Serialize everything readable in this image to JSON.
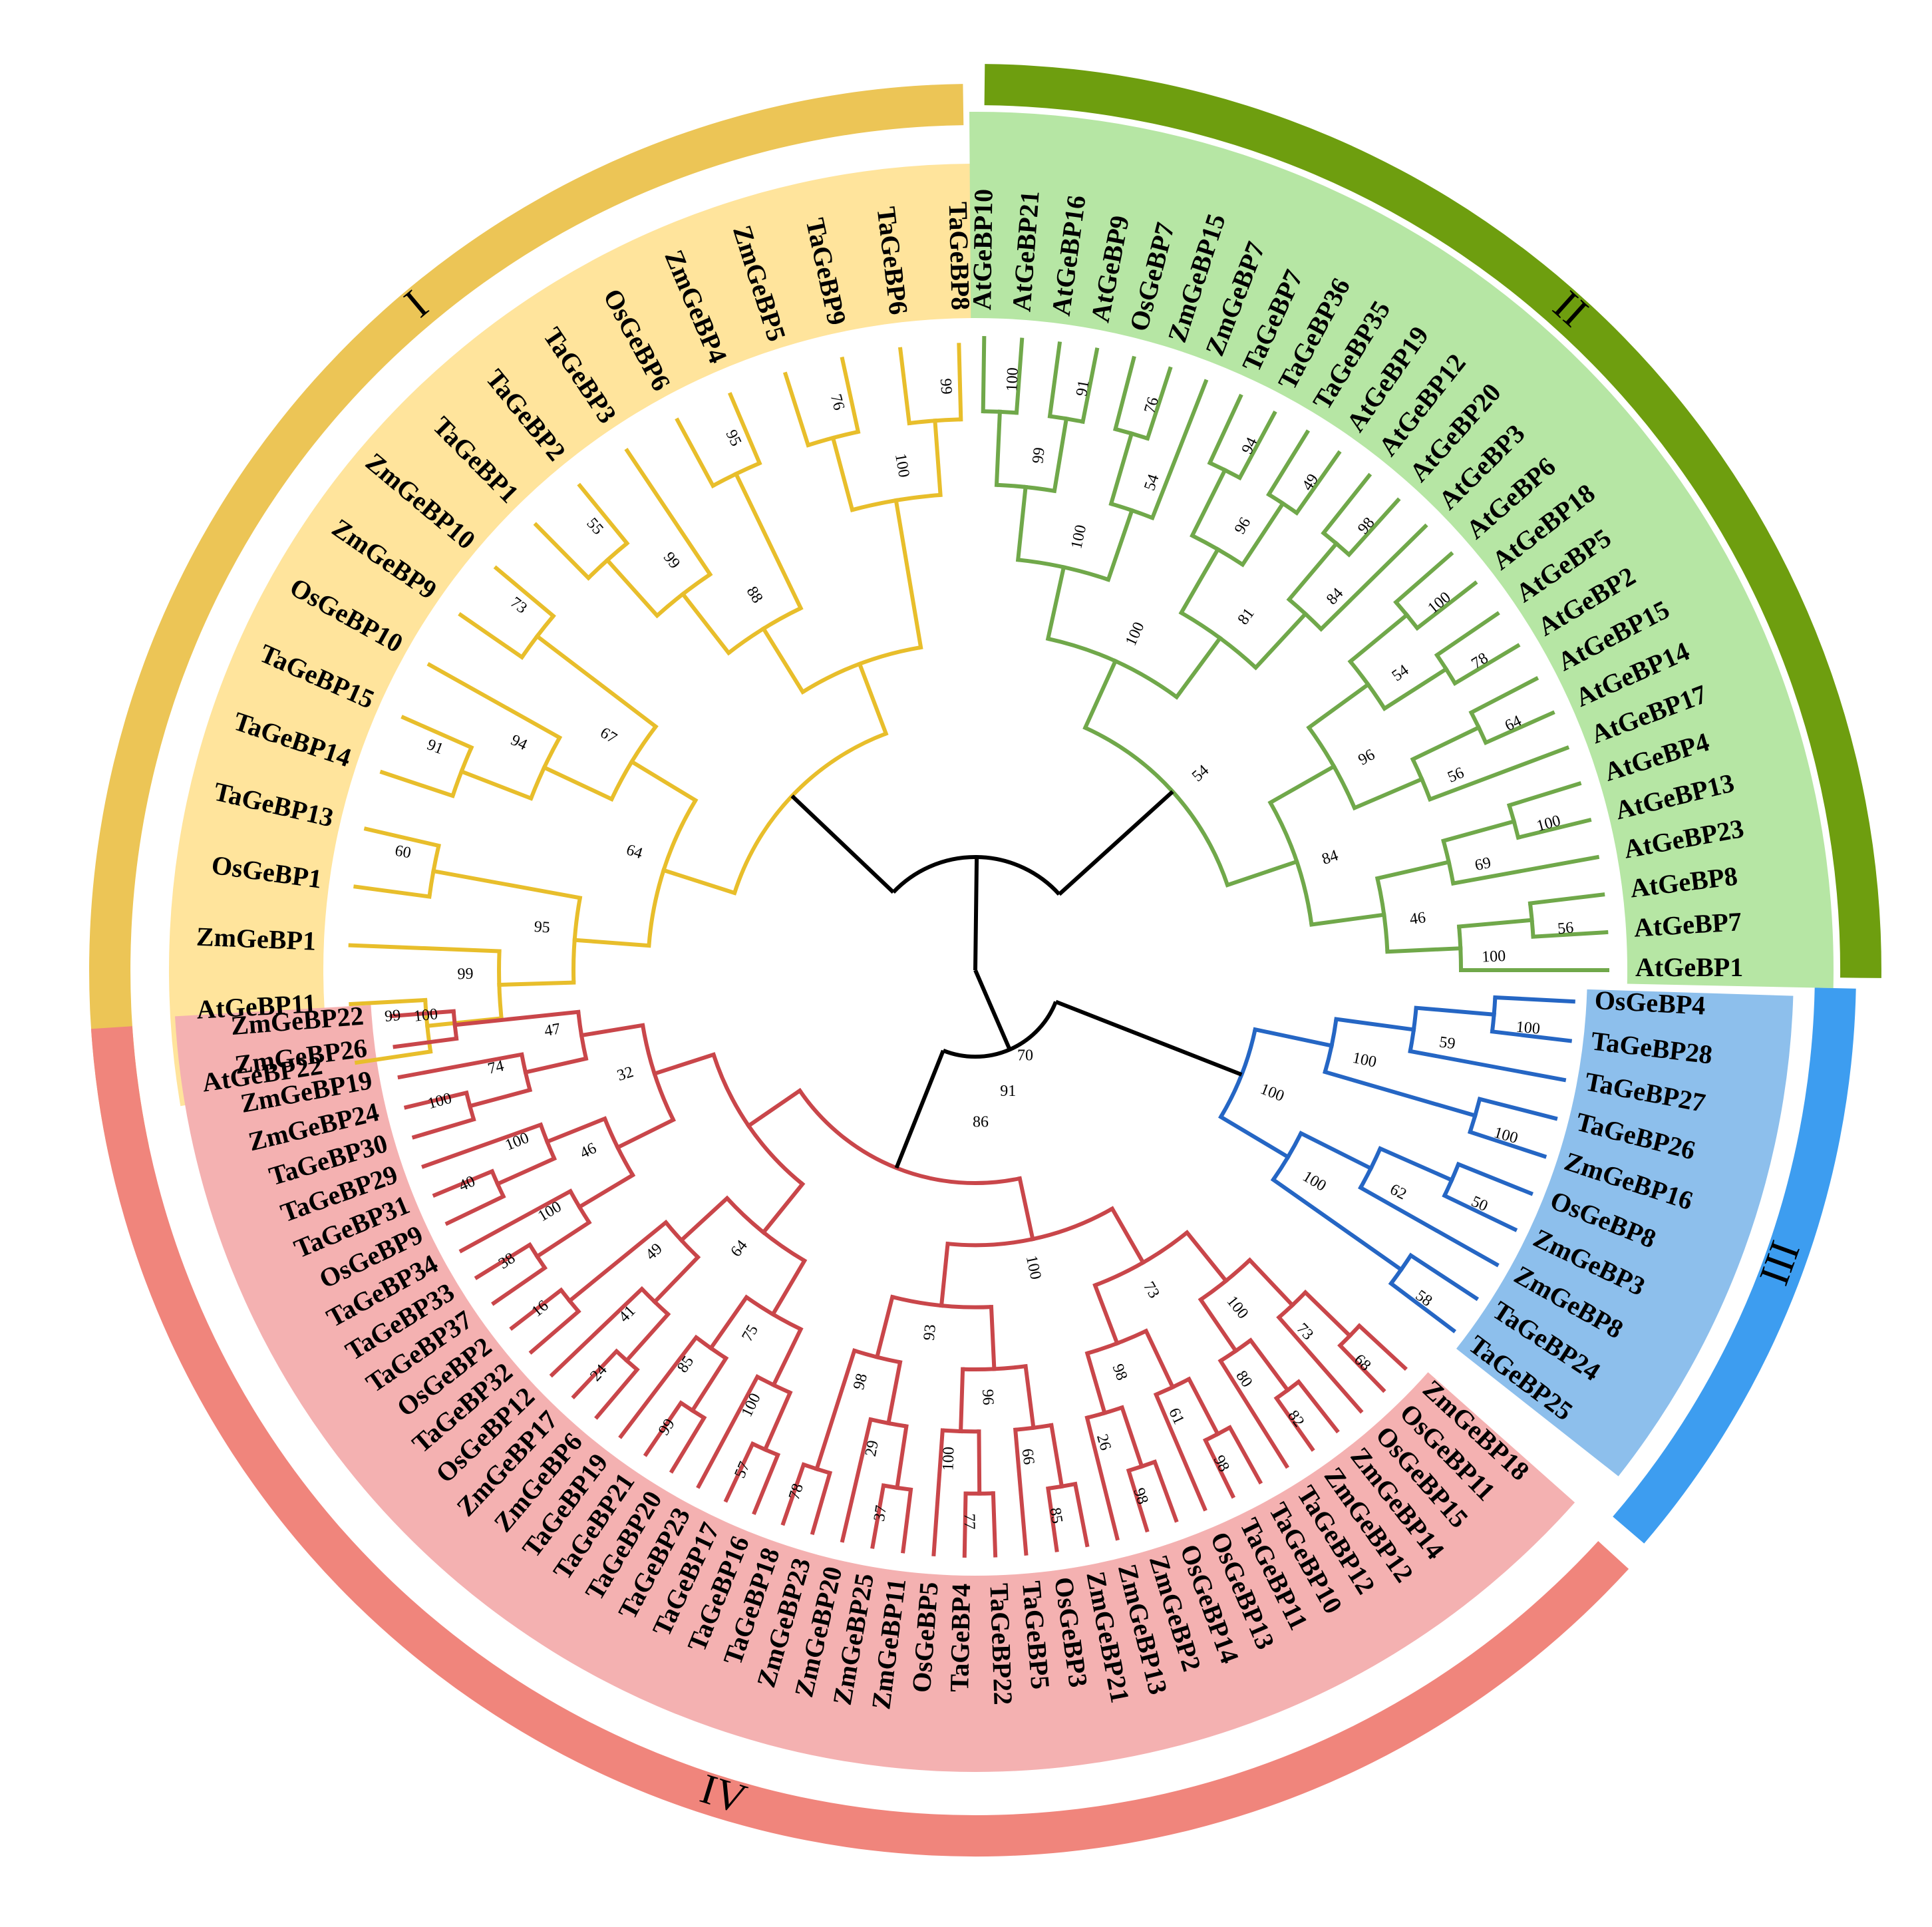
{
  "tree": {
    "root_bootstrap": [
      "70",
      "91",
      "86"
    ],
    "clades": [
      {
        "id": "I",
        "label": "I",
        "ring_color": "#ecc556",
        "sector_color": "#ffe49c",
        "branch_color": "#e8be2b",
        "leaves": [
          "AtGeBP22",
          "AtGeBP11",
          "ZmGeBP1",
          "OsGeBP1",
          "TaGeBP13",
          "TaGeBP14",
          "TaGeBP15",
          "OsGeBP10",
          "ZmGeBP9",
          "ZmGeBP10",
          "TaGeBP1",
          "TaGeBP2",
          "TaGeBP3",
          "OsGeBP6",
          "ZmGeBP4",
          "ZmGeBP5",
          "TaGeBP9",
          "TaGeBP6",
          "TaGeBP8"
        ],
        "bootstrap": [
          "99",
          "99",
          "60",
          "95",
          "91",
          "94",
          "73",
          "67",
          "64",
          "55",
          "99",
          "95",
          "88",
          "76",
          "99",
          "100"
        ]
      },
      {
        "id": "II",
        "label": "II",
        "ring_color": "#6e9e0f",
        "sector_color": "#b6e6a4",
        "branch_color": "#70a84a",
        "leaves": [
          "AtGeBP10",
          "AtGeBP21",
          "AtGeBP16",
          "AtGeBP9",
          "OsGeBP7",
          "ZmGeBP15",
          "ZmGeBP7",
          "TaGeBP7",
          "TaGeBP36",
          "TaGeBP35",
          "AtGeBP19",
          "AtGeBP12",
          "AtGeBP20",
          "AtGeBP3",
          "AtGeBP6",
          "AtGeBP18",
          "AtGeBP5",
          "AtGeBP2",
          "AtGeBP15",
          "AtGeBP14",
          "AtGeBP17",
          "AtGeBP4",
          "AtGeBP13",
          "AtGeBP23",
          "AtGeBP8",
          "AtGeBP7",
          "AtGeBP1"
        ],
        "bootstrap": [
          "100",
          "91",
          "99",
          "76",
          "54",
          "100",
          "94",
          "49",
          "96",
          "98",
          "84",
          "81",
          "100",
          "100",
          "78",
          "54",
          "64",
          "56",
          "96",
          "100",
          "69",
          "56",
          "100",
          "46",
          "84",
          "54"
        ]
      },
      {
        "id": "III",
        "label": "III",
        "ring_color": "#3d9df0",
        "sector_color": "#8dbfec",
        "branch_color": "#2566c4",
        "leaves": [
          "OsGeBP4",
          "TaGeBP28",
          "TaGeBP27",
          "TaGeBP26",
          "ZmGeBP16",
          "OsGeBP8",
          "ZmGeBP3",
          "ZmGeBP8",
          "TaGeBP24",
          "TaGeBP25"
        ],
        "bootstrap": [
          "100",
          "59",
          "100",
          "100",
          "50",
          "62",
          "58",
          "100",
          "100"
        ]
      },
      {
        "id": "IV",
        "label": "IV",
        "ring_color": "#f0857c",
        "sector_color": "#f4b1b1",
        "branch_color": "#c9464a",
        "leaves": [
          "ZmGeBP18",
          "OsGeBP11",
          "OsGeBP15",
          "ZmGeBP14",
          "ZmGeBP12",
          "TaGeBP12",
          "TaGeBP10",
          "TaGeBP11",
          "OsGeBP13",
          "OsGeBP14",
          "ZmGeBP2",
          "ZmGeBP13",
          "ZmGeBP21",
          "OsGeBP3",
          "TaGeBP5",
          "TaGeBP22",
          "TaGeBP4",
          "OsGeBP5",
          "ZmGeBP11",
          "ZmGeBP25",
          "ZmGeBP20",
          "ZmGeBP23",
          "TaGeBP18",
          "TaGeBP16",
          "TaGeBP17",
          "TaGeBP23",
          "TaGeBP20",
          "TaGeBP21",
          "TaGeBP19",
          "ZmGeBP6",
          "ZmGeBP17",
          "OsGeBP12",
          "TaGeBP32",
          "OsGeBP2",
          "TaGeBP37",
          "TaGeBP33",
          "TaGeBP34",
          "OsGeBP9",
          "TaGeBP31",
          "TaGeBP29",
          "TaGeBP30",
          "ZmGeBP24",
          "ZmGeBP19",
          "ZmGeBP26",
          "ZmGeBP22"
        ],
        "bootstrap": [
          "68",
          "73",
          "82",
          "80",
          "100",
          "98",
          "61",
          "98",
          "26",
          "98",
          "73",
          "85",
          "66",
          "77",
          "100",
          "96",
          "37",
          "29",
          "78",
          "98",
          "93",
          "100",
          "57",
          "100",
          "99",
          "85",
          "75",
          "24",
          "41",
          "16",
          "49",
          "64",
          "38",
          "100",
          "40",
          "100",
          "46",
          "100",
          "74",
          "100",
          "47",
          "32"
        ]
      }
    ]
  }
}
